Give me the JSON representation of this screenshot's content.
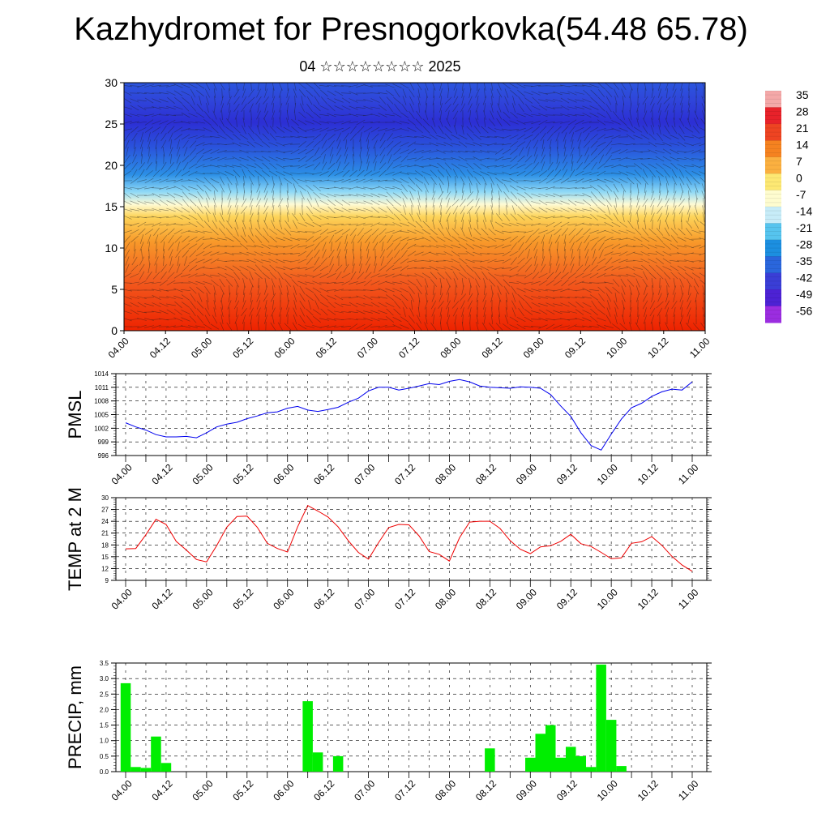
{
  "title": "Kazhydromet for Presnogorkovka(54.48 65.78)",
  "subtitle": "04 ☆☆☆☆☆☆☆☆ 2025",
  "chart_data": [
    {
      "type": "heatmap",
      "ylim": [
        0,
        30
      ],
      "yticks": [
        "0",
        "5",
        "10",
        "15",
        "20",
        "25",
        "30"
      ],
      "xticks": [
        "04.00",
        "04.12",
        "05.00",
        "05.12",
        "06.00",
        "06.12",
        "07.00",
        "07.12",
        "08.00",
        "08.12",
        "09.00",
        "09.12",
        "10.00",
        "10.12",
        "11.00"
      ],
      "colorbar_labels": [
        "35",
        "28",
        "21",
        "14",
        "7",
        "0",
        "-7",
        "-14",
        "-21",
        "-28",
        "-35",
        "-42",
        "-49",
        "-56"
      ],
      "colorbar_colors": [
        "#f4a8a8",
        "#e8222a",
        "#ee4422",
        "#f58220",
        "#fbb040",
        "#fde873",
        "#fefccf",
        "#c7ecf8",
        "#56c4ee",
        "#1c8fe0",
        "#2a66dc",
        "#3a3ed6",
        "#4d22d4",
        "#9b2de0"
      ],
      "wind_barbs": true
    },
    {
      "type": "line",
      "ylabel": "PMSL",
      "ylim": [
        996,
        1014
      ],
      "yticks": [
        "996",
        "999",
        "1002",
        "1005",
        "1008",
        "1011",
        "1014"
      ],
      "xticks": [
        "04.00",
        "04.12",
        "05.00",
        "05.12",
        "06.00",
        "06.12",
        "07.00",
        "07.12",
        "08.00",
        "08.12",
        "09.00",
        "09.12",
        "10.00",
        "10.12",
        "11.00"
      ],
      "x": [
        0,
        3,
        6,
        9,
        12,
        15,
        18,
        21,
        24,
        27,
        30,
        33,
        36,
        39,
        42,
        45,
        48,
        51,
        54,
        57,
        60,
        63,
        66,
        69,
        72,
        75,
        78,
        81,
        84,
        87,
        90,
        93,
        96,
        99,
        102,
        105,
        108,
        111,
        114,
        117,
        120,
        123,
        126,
        129,
        132,
        135,
        138,
        141,
        144,
        147,
        150,
        153,
        156,
        159,
        162,
        165,
        168
      ],
      "values": [
        1003.2,
        1002.3,
        1001.6,
        1000.6,
        1000.1,
        1000.1,
        1000.2,
        999.9,
        1001.0,
        1002.3,
        1002.9,
        1003.3,
        1004.1,
        1004.7,
        1005.4,
        1005.6,
        1006.4,
        1006.8,
        1006.0,
        1005.7,
        1006.1,
        1006.6,
        1007.7,
        1008.6,
        1010.2,
        1011.0,
        1011.0,
        1010.4,
        1010.8,
        1011.3,
        1011.8,
        1011.6,
        1012.3,
        1012.7,
        1012.2,
        1011.3,
        1011.0,
        1010.9,
        1010.8,
        1011.1,
        1011.0,
        1010.8,
        1009.4,
        1006.9,
        1004.6,
        1001.0,
        998.2,
        997.2,
        1000.7,
        1004.0,
        1006.5,
        1007.5,
        1009.0,
        1010.0,
        1010.6,
        1010.4,
        1012.2
      ],
      "color": "#0000ee"
    },
    {
      "type": "line",
      "ylabel": "TEMP at 2 M",
      "ylim": [
        9,
        30
      ],
      "yticks": [
        "9",
        "12",
        "15",
        "18",
        "21",
        "24",
        "27",
        "30"
      ],
      "xticks": [
        "04.00",
        "04.12",
        "05.00",
        "05.12",
        "06.00",
        "06.12",
        "07.00",
        "07.12",
        "08.00",
        "08.12",
        "09.00",
        "09.12",
        "10.00",
        "10.12",
        "11.00"
      ],
      "x": [
        0,
        3,
        6,
        9,
        12,
        15,
        18,
        21,
        24,
        27,
        30,
        33,
        36,
        39,
        42,
        45,
        48,
        51,
        54,
        57,
        60,
        63,
        66,
        69,
        72,
        75,
        78,
        81,
        84,
        87,
        90,
        93,
        96,
        99,
        102,
        105,
        108,
        111,
        114,
        117,
        120,
        123,
        126,
        129,
        132,
        135,
        138,
        141,
        144,
        147,
        150,
        153,
        156,
        159,
        162,
        165,
        168
      ],
      "values": [
        17.0,
        17.1,
        20.6,
        24.5,
        23.2,
        18.9,
        16.7,
        14.3,
        13.7,
        17.8,
        22.5,
        25.2,
        25.3,
        22.5,
        18.4,
        17.1,
        16.2,
        22.6,
        28.0,
        26.6,
        25.1,
        22.6,
        19.1,
        16.1,
        14.4,
        18.6,
        22.4,
        23.2,
        23.1,
        20.3,
        16.3,
        15.6,
        13.9,
        19.8,
        23.8,
        24.0,
        24.0,
        22.2,
        19.1,
        16.9,
        15.8,
        17.5,
        17.8,
        18.9,
        20.7,
        18.3,
        17.6,
        16.1,
        14.5,
        14.7,
        18.4,
        18.8,
        20.1,
        17.9,
        15.1,
        12.9,
        11.3
      ],
      "color": "#ee0000"
    },
    {
      "type": "bar",
      "ylabel": "PRECIP, mm",
      "ylim": [
        0,
        3.5
      ],
      "yticks": [
        "0.0",
        "0.5",
        "1.0",
        "1.5",
        "2.0",
        "2.5",
        "3.0",
        "3.5"
      ],
      "xticks": [
        "04.00",
        "04.12",
        "05.00",
        "05.12",
        "06.00",
        "06.12",
        "07.00",
        "07.12",
        "08.00",
        "08.12",
        "09.00",
        "09.12",
        "10.00",
        "10.12",
        "11.00"
      ],
      "x": [
        0,
        3,
        6,
        9,
        12,
        54,
        57,
        63,
        108,
        120,
        123,
        126,
        129,
        132,
        135,
        138,
        141,
        144,
        147,
        150
      ],
      "values": [
        2.85,
        0.15,
        0.12,
        1.13,
        0.28,
        2.27,
        0.62,
        0.5,
        0.75,
        0.45,
        1.22,
        1.5,
        0.45,
        0.8,
        0.5,
        0.15,
        3.45,
        1.67,
        0.18,
        0
      ],
      "color": "#00ee00"
    }
  ]
}
